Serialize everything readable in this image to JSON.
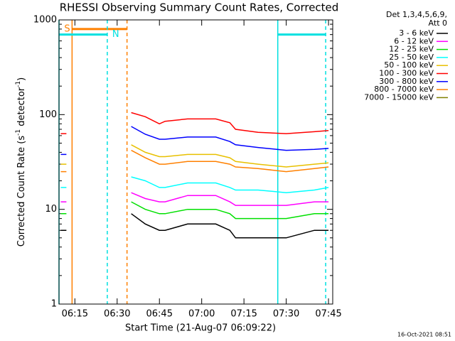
{
  "chart_data": {
    "type": "line",
    "title": "RHESSI Observing Summary Count Rates, Corrected",
    "ylabel": [
      "Corrected Count Rate (s",
      "-1",
      " detector",
      "-1",
      ")"
    ],
    "xlabel": "Start Time (21-Aug-07 06:09:22)",
    "footer": "16-Oct-2021 08:51",
    "legend_header": [
      "Det 1,3,4,5,6,9,",
      "Att 0"
    ],
    "legend": "right",
    "log_y": true,
    "ylim": [
      1,
      1000
    ],
    "yticks": [
      1,
      10,
      100,
      1000
    ],
    "xlim": [
      "06:09:22",
      "07:46:30"
    ],
    "xticks": [
      "06:15",
      "06:30",
      "06:45",
      "07:00",
      "07:15",
      "07:30",
      "07:45"
    ],
    "x": [
      "06:10",
      "06:12",
      "06:20",
      "06:35",
      "06:40",
      "06:45",
      "06:47",
      "06:55",
      "07:05",
      "07:10",
      "07:12",
      "07:20",
      "07:30",
      "07:40",
      "07:45"
    ],
    "series": [
      {
        "name": "3 - 6 keV",
        "color": "#000000",
        "values": [
          6,
          6,
          null,
          9,
          7,
          6,
          6,
          7,
          7,
          6,
          5,
          5,
          5,
          6,
          6
        ]
      },
      {
        "name": "6 - 12 keV",
        "color": "#ff00ff",
        "values": [
          12,
          12,
          null,
          15,
          13,
          12,
          12,
          14,
          14,
          12,
          11,
          11,
          11,
          12,
          12
        ]
      },
      {
        "name": "12 - 25 keV",
        "color": "#00e000",
        "values": [
          9,
          9,
          null,
          12,
          10,
          9,
          9,
          10,
          10,
          9,
          8,
          8,
          8,
          9,
          9
        ]
      },
      {
        "name": "25 - 50 keV",
        "color": "#00ffff",
        "values": [
          17,
          17,
          null,
          22,
          20,
          17,
          17,
          19,
          19,
          17,
          16,
          16,
          15,
          16,
          17
        ]
      },
      {
        "name": "50 - 100 keV",
        "color": "#e8c000",
        "values": [
          30,
          30,
          null,
          48,
          40,
          36,
          36,
          38,
          38,
          35,
          32,
          30,
          28,
          30,
          31
        ]
      },
      {
        "name": "100 - 300 keV",
        "color": "#ff0000",
        "values": [
          63,
          63,
          null,
          105,
          95,
          80,
          85,
          90,
          90,
          82,
          70,
          65,
          63,
          66,
          68
        ]
      },
      {
        "name": "300 - 800 keV",
        "color": "#0000ff",
        "values": [
          38,
          38,
          null,
          75,
          62,
          55,
          55,
          58,
          58,
          52,
          48,
          45,
          42,
          43,
          44
        ]
      },
      {
        "name": "800 - 7000 keV",
        "color": "#ff8000",
        "values": [
          25,
          25,
          null,
          42,
          35,
          30,
          30,
          32,
          32,
          30,
          28,
          27,
          25,
          27,
          28
        ]
      },
      {
        "name": "7000 - 15000 keV",
        "color": "#808000",
        "values": [
          null,
          null,
          null,
          null,
          null,
          null,
          null,
          null,
          null,
          null,
          null,
          null,
          null,
          null,
          null
        ]
      }
    ],
    "flags": [
      {
        "label": "S",
        "color": "#ff8000",
        "start": "06:14:00",
        "end": "06:33:30",
        "level": 800,
        "label_at": "start"
      },
      {
        "label": "N",
        "color": "#00e0e0",
        "start": "06:09:22",
        "end": "06:26:30",
        "level": 700,
        "label_at": "end"
      },
      {
        "color": "#00e0e0",
        "start": "07:27:00",
        "end": "07:44:00",
        "level": 700
      }
    ]
  }
}
